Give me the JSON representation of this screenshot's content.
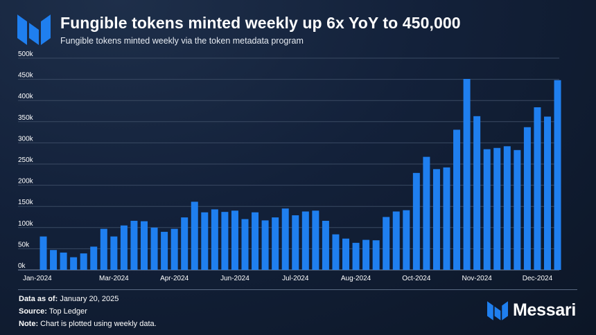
{
  "header": {
    "title": "Fungible tokens minted weekly up 6x YoY to 450,000",
    "subtitle": "Fungible tokens minted weekly via the token metadata program"
  },
  "footer": {
    "data_as_of_label": "Data as of:",
    "data_as_of_value": "January 20, 2025",
    "source_label": "Source:",
    "source_value": "Top Ledger",
    "note_label": "Note:",
    "note_value": "Chart is plotted using weekly data.",
    "brand": "Messari"
  },
  "colors": {
    "bar": "#1f7fef",
    "grid": "#3a4a63",
    "axis_text": "#ffffff",
    "logo": "#1f7fef"
  },
  "icons": [
    "messari-logo-icon"
  ],
  "chart_data": {
    "type": "bar",
    "x_tick_labels": [
      "Jan-2024",
      "Mar-2024",
      "Apr-2024",
      "Jun-2024",
      "Jul-2024",
      "Aug-2024",
      "Oct-2024",
      "Nov-2024",
      "Dec-2024"
    ],
    "x_tick_bar_index": [
      0,
      7,
      13,
      19,
      25,
      31,
      37,
      43,
      49
    ],
    "y_tick_labels": [
      "0k",
      "50k",
      "100k",
      "150k",
      "200k",
      "250k",
      "300k",
      "350k",
      "400k",
      "450k",
      "500k"
    ],
    "ylim": [
      0,
      500000
    ],
    "grid": true,
    "legend": false,
    "values": [
      79000,
      47000,
      41000,
      30000,
      39000,
      55000,
      97000,
      79000,
      105000,
      116000,
      115000,
      100000,
      90000,
      97000,
      124000,
      161000,
      136000,
      143000,
      137000,
      140000,
      120000,
      136000,
      117000,
      124000,
      145000,
      129000,
      138000,
      140000,
      116000,
      84000,
      74000,
      64000,
      71000,
      70000,
      125000,
      138000,
      141000,
      229000,
      267000,
      238000,
      242000,
      331000,
      451000,
      363000,
      285000,
      288000,
      292000,
      283000,
      337000,
      384000,
      362000,
      448000
    ]
  }
}
